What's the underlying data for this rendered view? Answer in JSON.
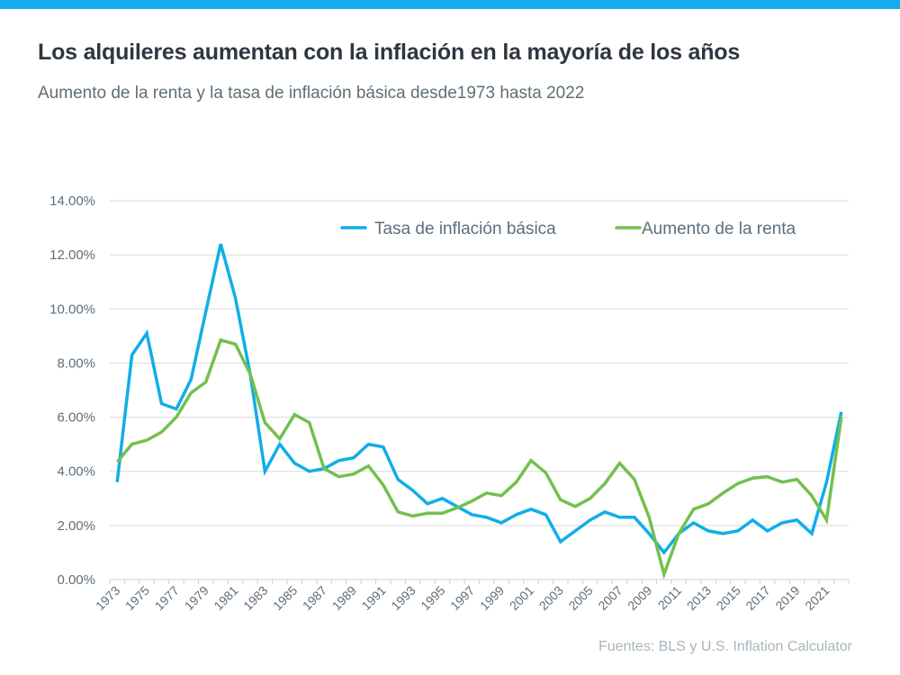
{
  "header": {
    "title": "Los alquileres aumentan con la inflación en la mayoría de los años",
    "subtitle": "Aumento de la renta y la tasa de inflación básica desde1973 hasta 2022",
    "accent_color": "#14acee"
  },
  "footer": {
    "source": "Fuentes: BLS y U.S. Inflation Calculator"
  },
  "chart_data": {
    "type": "line",
    "title": "Los alquileres aumentan con la inflación en la mayoría de los años",
    "subtitle": "Aumento de la renta y la tasa de inflación básica desde1973 hasta 2022",
    "xlabel": "",
    "ylabel": "",
    "ylim": [
      0,
      14
    ],
    "yticks": [
      "0.00%",
      "2.00%",
      "4.00%",
      "6.00%",
      "8.00%",
      "10.00%",
      "12.00%",
      "14.00%"
    ],
    "grid": true,
    "legend_position": "top-right",
    "categories": [
      "1973",
      "1974",
      "1975",
      "1976",
      "1977",
      "1978",
      "1979",
      "1980",
      "1981",
      "1982",
      "1983",
      "1984",
      "1985",
      "1986",
      "1987",
      "1988",
      "1989",
      "1990",
      "1991",
      "1992",
      "1993",
      "1994",
      "1995",
      "1996",
      "1997",
      "1998",
      "1999",
      "2000",
      "2001",
      "2002",
      "2003",
      "2004",
      "2005",
      "2006",
      "2007",
      "2008",
      "2009",
      "2010",
      "2011",
      "2012",
      "2013",
      "2014",
      "2015",
      "2016",
      "2017",
      "2018",
      "2019",
      "2020",
      "2021",
      "2022"
    ],
    "xtick_labels": [
      "1973",
      "1975",
      "1977",
      "1979",
      "1981",
      "1983",
      "1985",
      "1987",
      "1989",
      "1991",
      "1993",
      "1995",
      "1997",
      "1999",
      "2001",
      "2003",
      "2005",
      "2007",
      "2009",
      "2011",
      "2013",
      "2015",
      "2017",
      "2019",
      "2021"
    ],
    "series": [
      {
        "name": "Tasa de inflación básica",
        "color": "#10aee8",
        "values": [
          3.6,
          8.3,
          9.1,
          6.5,
          6.3,
          7.4,
          9.9,
          12.4,
          10.4,
          7.6,
          4.0,
          5.0,
          4.3,
          4.0,
          4.1,
          4.4,
          4.5,
          5.0,
          4.9,
          3.7,
          3.3,
          2.8,
          3.0,
          2.7,
          2.4,
          2.3,
          2.1,
          2.4,
          2.6,
          2.4,
          1.4,
          1.8,
          2.2,
          2.5,
          2.3,
          2.3,
          1.7,
          1.0,
          1.7,
          2.1,
          1.8,
          1.7,
          1.8,
          2.2,
          1.8,
          2.1,
          2.2,
          1.7,
          3.6,
          6.2
        ]
      },
      {
        "name": "Aumento de la renta",
        "color": "#72c04e",
        "values": [
          4.35,
          5.0,
          5.15,
          5.45,
          6.0,
          6.9,
          7.3,
          8.85,
          8.7,
          7.6,
          5.8,
          5.2,
          6.1,
          5.8,
          4.1,
          3.8,
          3.9,
          4.2,
          3.5,
          2.5,
          2.35,
          2.45,
          2.45,
          2.65,
          2.9,
          3.2,
          3.1,
          3.6,
          4.4,
          3.95,
          2.95,
          2.7,
          3.0,
          3.55,
          4.3,
          3.7,
          2.3,
          0.2,
          1.7,
          2.6,
          2.8,
          3.2,
          3.55,
          3.75,
          3.8,
          3.6,
          3.7,
          3.1,
          2.2,
          6.0
        ]
      }
    ]
  }
}
